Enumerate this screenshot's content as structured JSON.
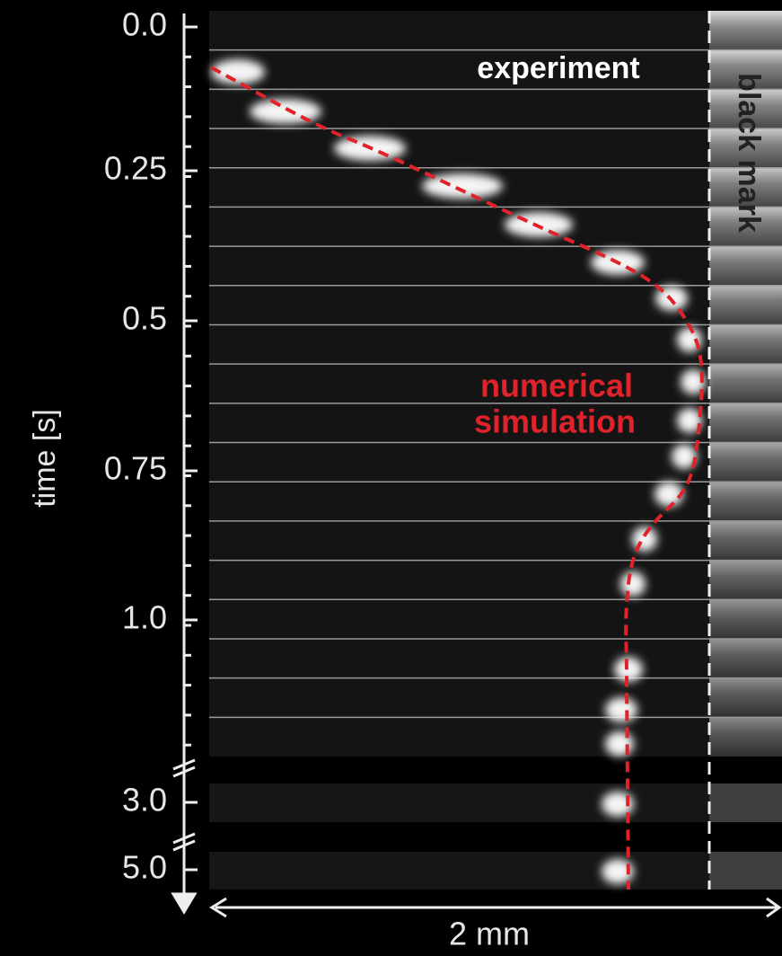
{
  "axis": {
    "label": "time [s]",
    "ticks": [
      "0.0",
      "0.25",
      "0.5",
      "0.75",
      "1.0",
      "3.0",
      "5.0"
    ]
  },
  "annotations": {
    "experiment": "experiment",
    "black_mark": "black mark",
    "simulation_line1": "numerical",
    "simulation_line2": "simulation"
  },
  "scale_bar": "2 mm"
}
